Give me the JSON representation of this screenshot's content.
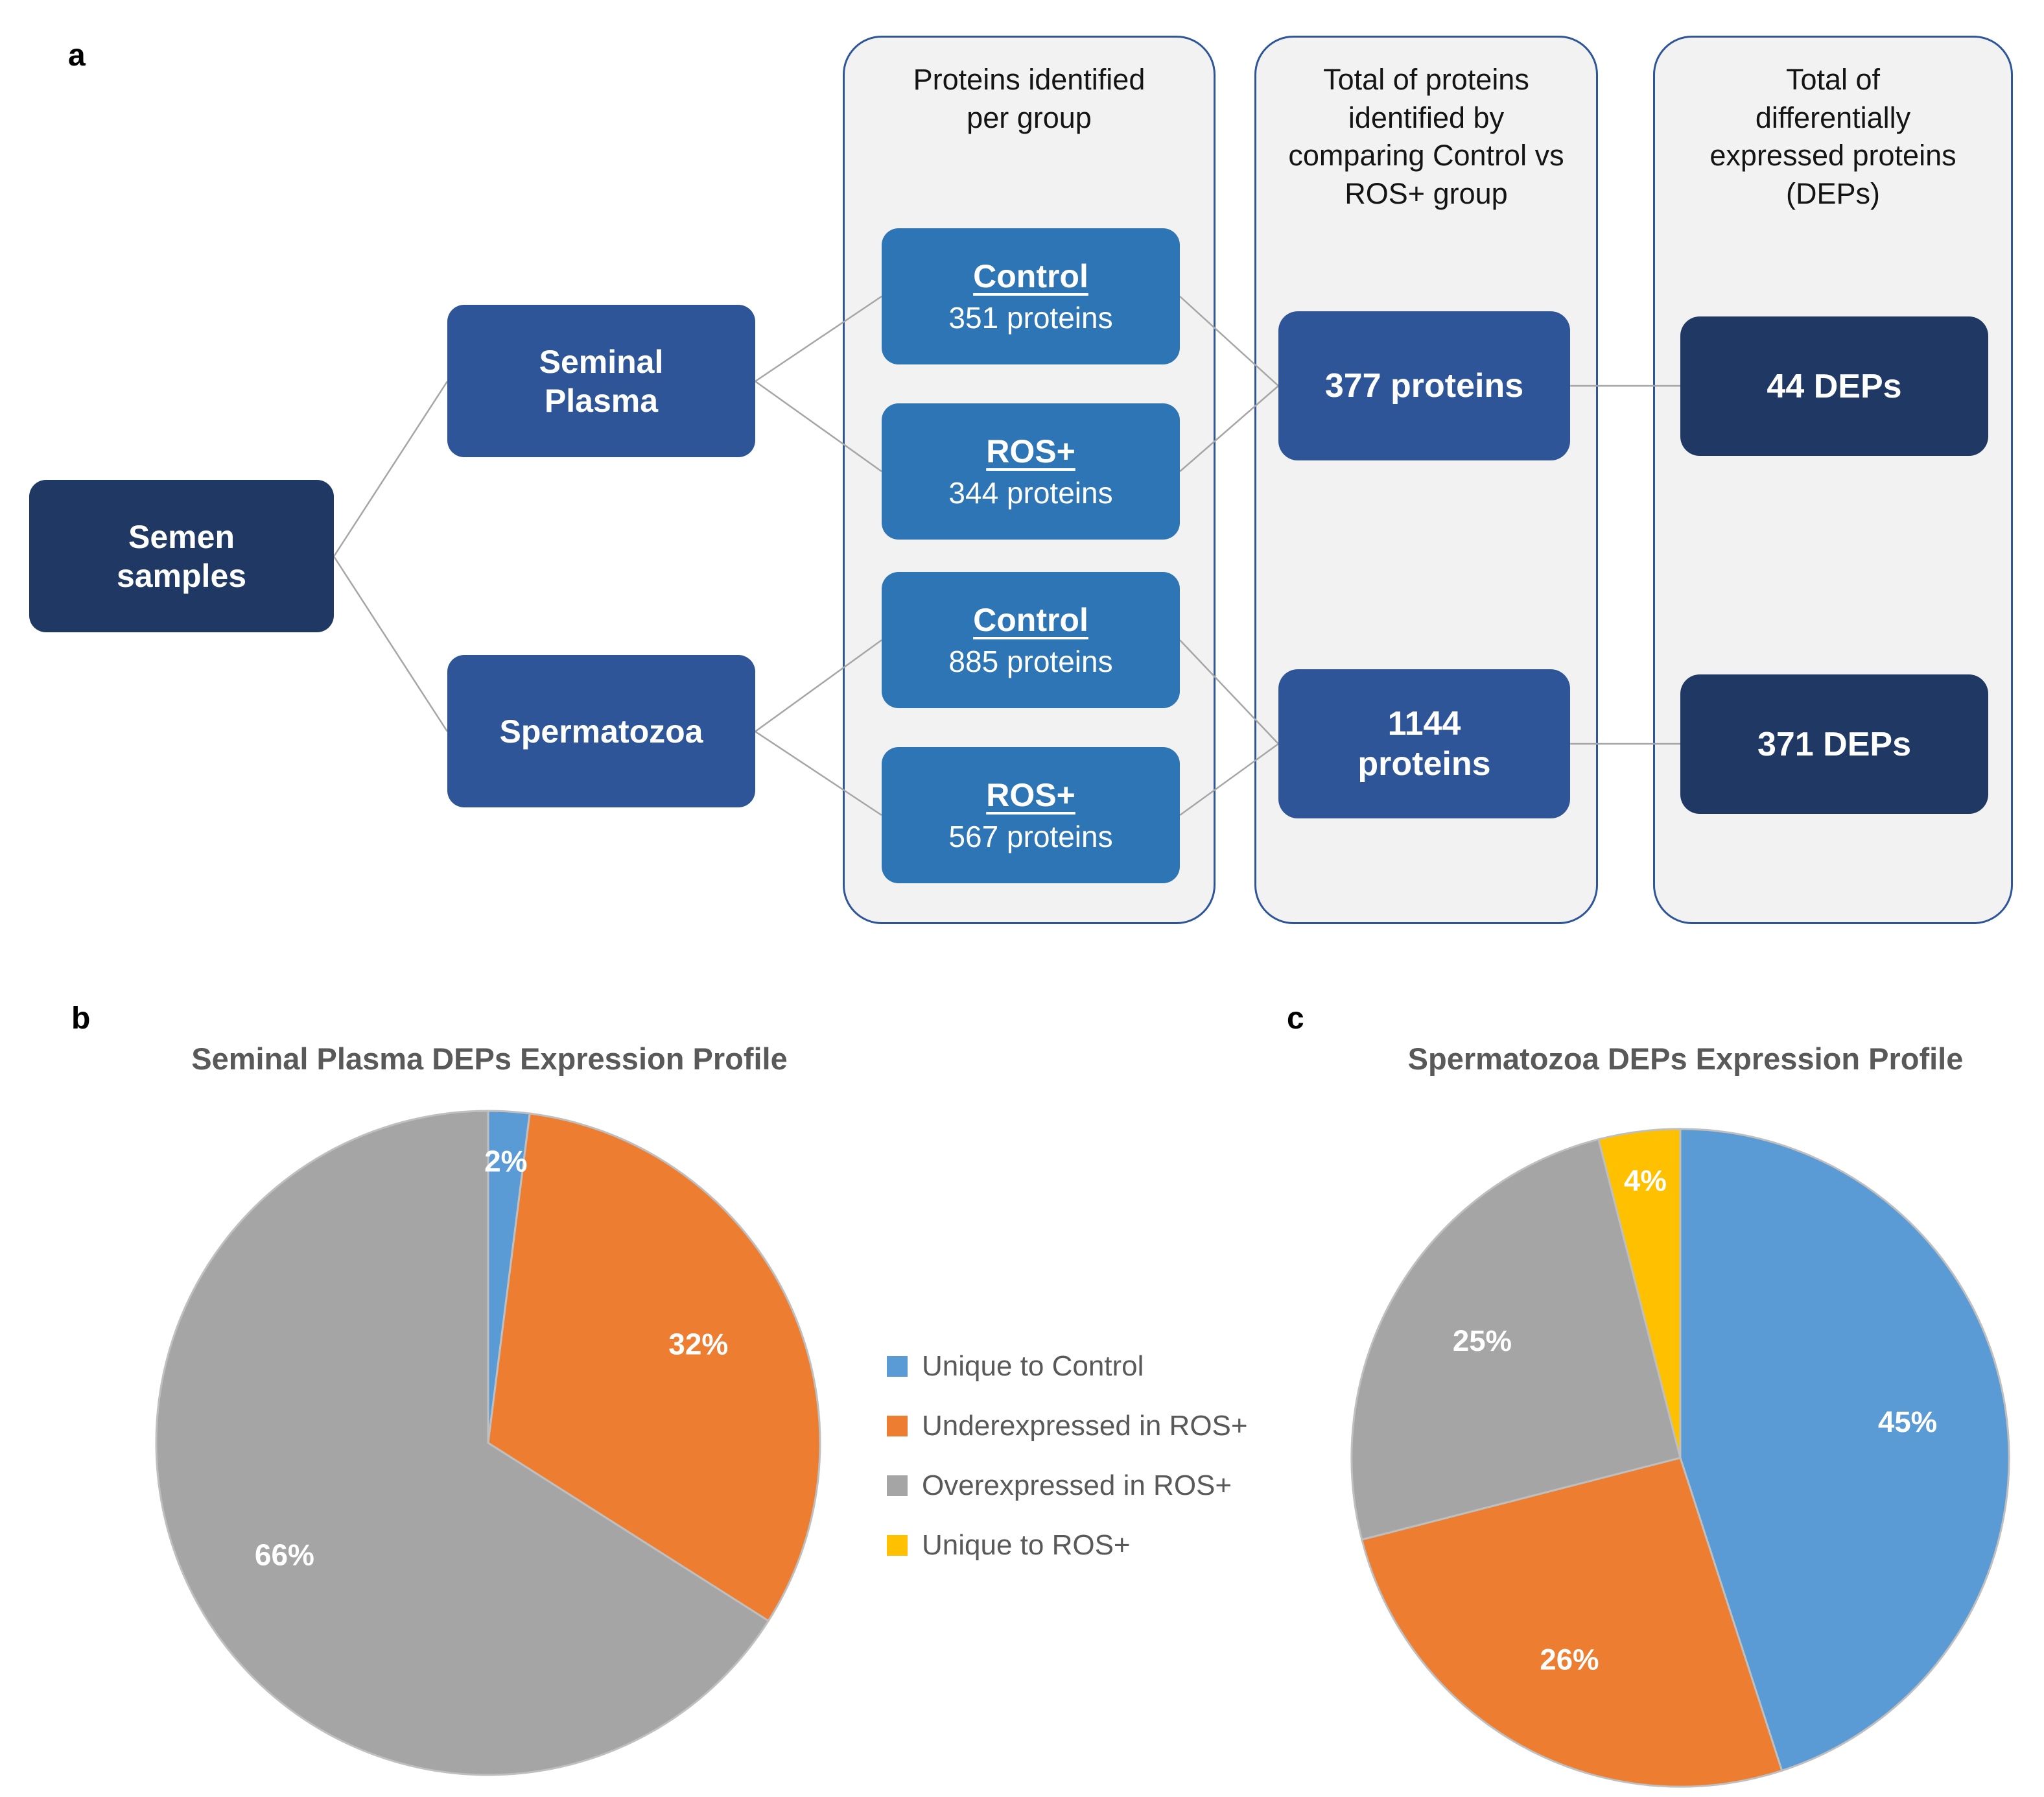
{
  "panels": {
    "a": "a",
    "b": "b",
    "c": "c"
  },
  "flowchart": {
    "root_label": "Semen\nsamples",
    "branches": [
      {
        "label": "Seminal\nPlasma"
      },
      {
        "label": "Spermatozoa"
      }
    ],
    "columns": [
      {
        "header": "Proteins identified\nper group"
      },
      {
        "header": "Total of proteins\nidentified by\ncomparing Control vs\nROS+ group"
      },
      {
        "header": "Total of\ndifferentially\nexpressed proteins\n(DEPs)"
      }
    ],
    "group_boxes": [
      {
        "title": "Control",
        "subtitle": "351 proteins"
      },
      {
        "title": "ROS+",
        "subtitle": "344 proteins"
      },
      {
        "title": "Control",
        "subtitle": "885 proteins"
      },
      {
        "title": "ROS+",
        "subtitle": "567 proteins"
      }
    ],
    "totals": [
      {
        "label": "377 proteins"
      },
      {
        "label": "1144\nproteins"
      }
    ],
    "deps": [
      {
        "label": "44 DEPs"
      },
      {
        "label": "371 DEPs"
      }
    ]
  },
  "colors": {
    "dark_navy": "#1F3864",
    "medium_blue": "#2E5597",
    "light_blue": "#2E75B6",
    "container_fill": "#F2F2F2",
    "connector_gray": "#A6A6A6",
    "series_blue": "#5B9BD5",
    "series_orange": "#ED7D31",
    "series_gray": "#A5A5A5",
    "series_yellow": "#FFC000"
  },
  "chart_data": [
    {
      "type": "pie",
      "title": "Seminal Plasma DEPs Expression Profile",
      "labels": [
        "Unique to Control",
        "Underexpressed in ROS+",
        "Overexpressed in ROS+",
        "Unique to ROS+"
      ],
      "values": [
        2,
        32,
        66,
        0
      ],
      "display_labels": [
        "2%",
        "32%",
        "66%",
        ""
      ],
      "colors": [
        "#5B9BD5",
        "#ED7D31",
        "#A5A5A5",
        "#FFC000"
      ],
      "legend_position": "right"
    },
    {
      "type": "pie",
      "title": "Spermatozoa DEPs Expression Profile",
      "labels": [
        "Unique to Control",
        "Underexpressed in ROS+",
        "Overexpressed in ROS+",
        "Unique to ROS+"
      ],
      "values": [
        45,
        26,
        25,
        4
      ],
      "display_labels": [
        "45%",
        "26%",
        "25%",
        "4%"
      ],
      "colors": [
        "#5B9BD5",
        "#ED7D31",
        "#A5A5A5",
        "#FFC000"
      ],
      "legend_position": "shared-left"
    }
  ],
  "legend": {
    "items": [
      {
        "label": "Unique to Control",
        "color": "#5B9BD5"
      },
      {
        "label": "Underexpressed in ROS+",
        "color": "#ED7D31"
      },
      {
        "label": "Overexpressed in ROS+",
        "color": "#A5A5A5"
      },
      {
        "label": "Unique to ROS+",
        "color": "#FFC000"
      }
    ]
  }
}
